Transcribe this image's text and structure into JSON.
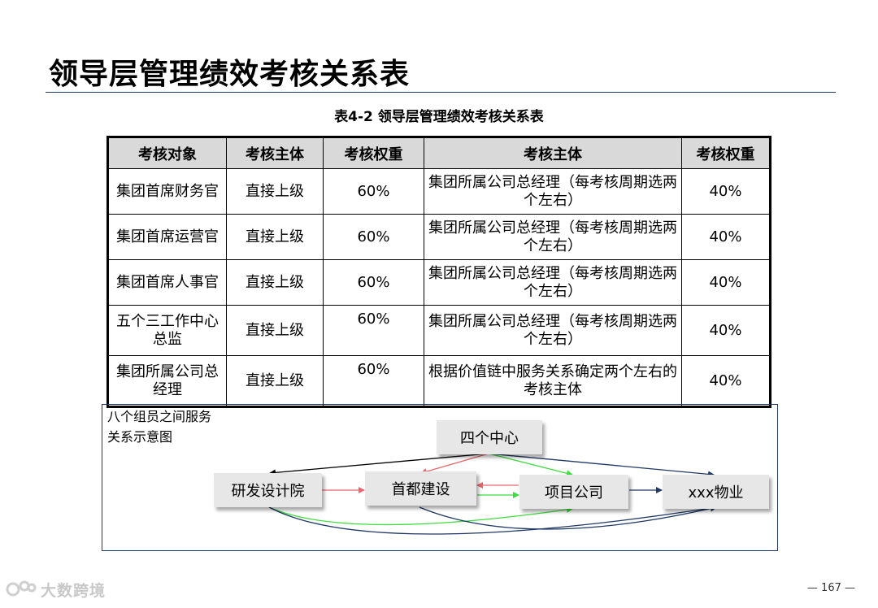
{
  "page": {
    "title": "领导层管理绩效考核关系表",
    "caption": "表4-2  领导层管理绩效考核关系表",
    "page_number": "— 167 —",
    "watermark": "大数跨境"
  },
  "table": {
    "headers": [
      "考核对象",
      "考核主体",
      "考核权重",
      "考核主体",
      "考核权重"
    ],
    "rows": [
      {
        "object": "集团首席财务官",
        "subject1": "直接上级",
        "weight1": "60%",
        "subject2": "集团所属公司总经理（每考核周期选两个左右）",
        "weight2": "40%"
      },
      {
        "object": "集团首席运营官",
        "subject1": "直接上级",
        "weight1": "60%",
        "subject2": "集团所属公司总经理（每考核周期选两个左右）",
        "weight2": "40%"
      },
      {
        "object": "集团首席人事官",
        "subject1": "直接上级",
        "weight1": "60%",
        "subject2": "集团所属公司总经理（每考核周期选两个左右）",
        "weight2": "40%"
      },
      {
        "object": "五个三工作中心总监",
        "subject1": "直接上级",
        "weight1": "60%",
        "subject2": "集团所属公司总经理（每考核周期选两个左右）",
        "weight2": "40%"
      },
      {
        "object": "集团所属公司总经理",
        "subject1": "直接上级",
        "weight1": "60%",
        "subject2": "根据价值链中服务关系确定两个左右的考核主体",
        "weight2": "40%"
      }
    ]
  },
  "diagram": {
    "label_line1": "八个组员之间服务",
    "label_line2": "关系示意图",
    "nodes": {
      "center": "四个中心",
      "design": "研发设计院",
      "construction": "首都建设",
      "project": "项目公司",
      "property": "xxx物业"
    },
    "colors": {
      "black": "#000000",
      "red": "#e8676b",
      "green": "#3fdc3f",
      "navy": "#1f3864"
    }
  }
}
